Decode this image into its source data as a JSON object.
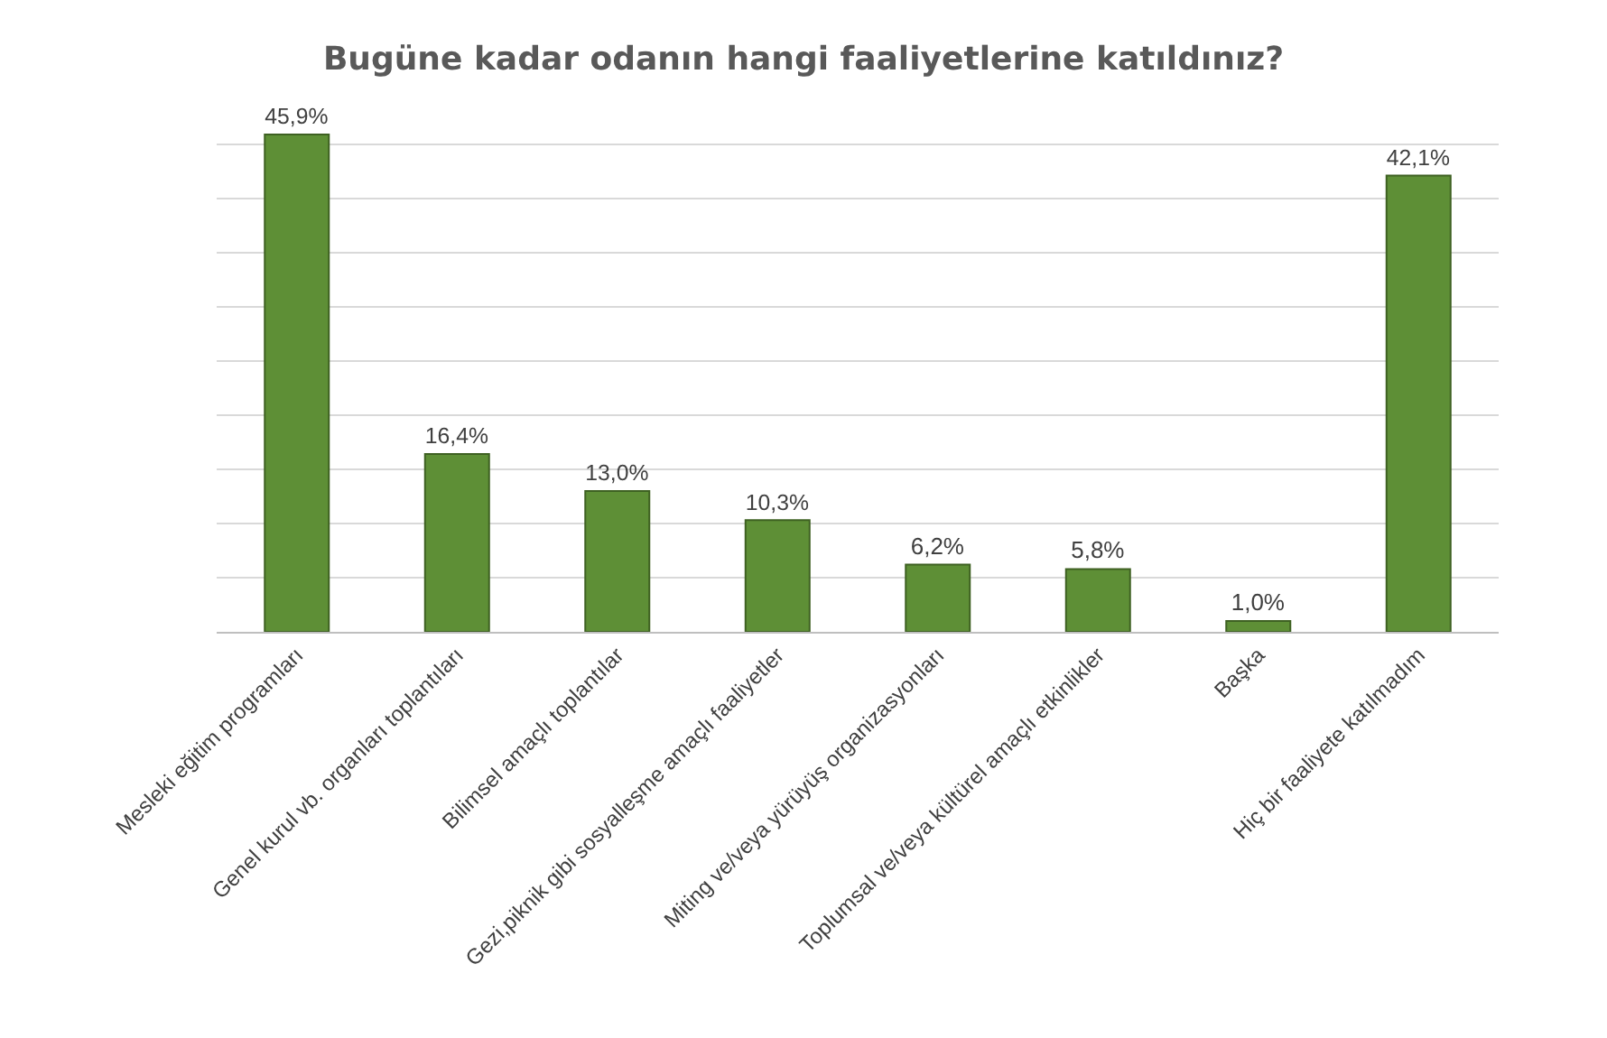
{
  "chart_data": {
    "type": "bar",
    "title": "Bugüne kadar odanın hangi faaliyetlerine katıldınız?",
    "categories": [
      "Mesleki eğitim programları",
      "Genel kurul vb. organları toplantıları",
      "Bilimsel amaçlı toplantılar",
      "Gezi,piknik gibi sosyalleşme amaçlı faaliyetler",
      "Miting ve/veya yürüyüş organizasyonları",
      "Toplumsal ve/veya kültürel amaçlı etkinlikler",
      "Başka",
      "Hiç bir faaliyete katılmadım"
    ],
    "values": [
      45.9,
      16.4,
      13.0,
      10.3,
      6.2,
      5.8,
      1.0,
      42.1
    ],
    "value_labels": [
      "45,9%",
      "16,4%",
      "13,0%",
      "10,3%",
      "6,2%",
      "5,8%",
      "1,0%",
      "42,1%"
    ],
    "color": "#5e8f36",
    "yticks": [
      {
        "value": 0,
        "label": null
      },
      {
        "value": 5,
        "label": null
      },
      {
        "value": 10,
        "label": null
      },
      {
        "value": 15,
        "label": null
      },
      {
        "value": 20,
        "label": null
      },
      {
        "value": 25,
        "label": null
      },
      {
        "value": 30,
        "label": null
      },
      {
        "value": 35,
        "label": null
      },
      {
        "value": 40,
        "label": null
      },
      {
        "value": 45,
        "label": null
      }
    ],
    "grid": "y",
    "tick_labels": "x"
  }
}
